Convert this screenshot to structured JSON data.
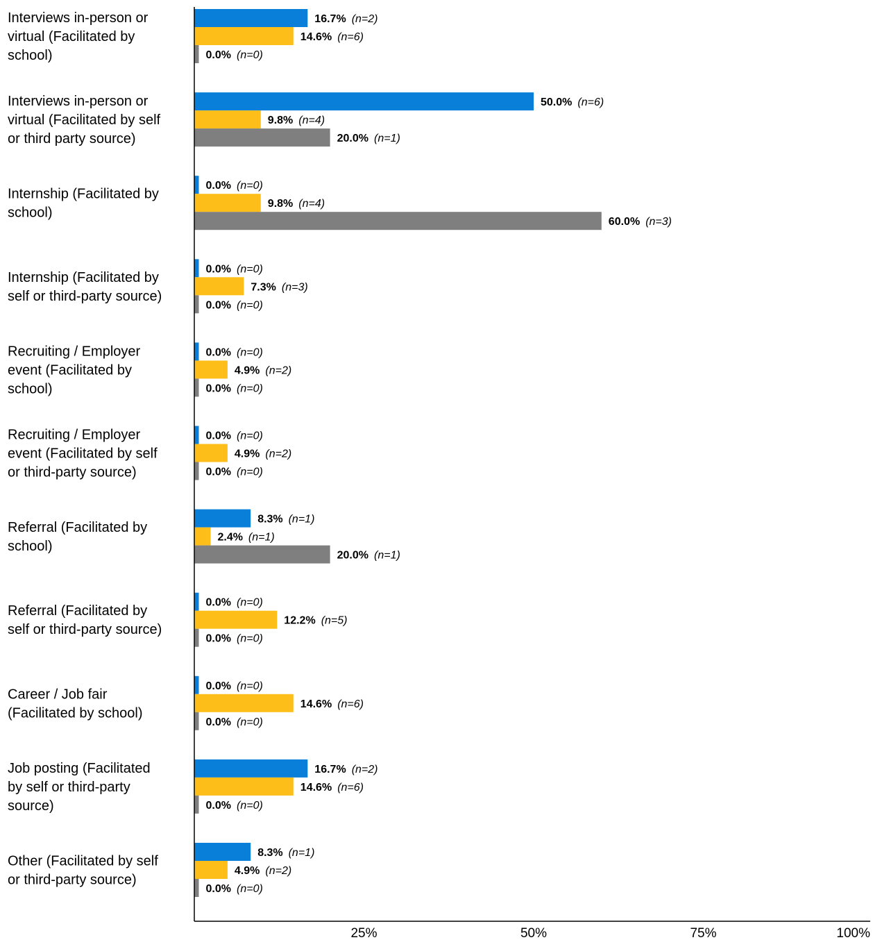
{
  "chart_data": {
    "type": "bar",
    "orientation": "horizontal",
    "grid": false,
    "xlim": [
      0,
      100
    ],
    "x_ticks": [
      "25%",
      "50%",
      "75%",
      "100%"
    ],
    "categories": [
      [
        "Interviews in-person or",
        "virtual (Facilitated by",
        "school)"
      ],
      [
        "Interviews in-person or",
        "virtual (Facilitated by self",
        "or third party source)"
      ],
      [
        "Internship (Facilitated by",
        "school)"
      ],
      [
        "Internship (Facilitated by",
        "self or third-party source)"
      ],
      [
        "Recruiting / Employer",
        "event (Facilitated by",
        "school)"
      ],
      [
        "Recruiting / Employer",
        "event (Facilitated by self",
        "or third-party source)"
      ],
      [
        "Referral (Facilitated by",
        "school)"
      ],
      [
        "Referral (Facilitated by",
        "self or third-party source)"
      ],
      [
        "Career / Job fair",
        "(Facilitated by school)"
      ],
      [
        "Job posting (Facilitated",
        "by self or third-party",
        "source)"
      ],
      [
        "Other (Facilitated by self",
        "or third-party source)"
      ]
    ],
    "series": [
      {
        "color": "#0A7FD9",
        "values": [
          16.7,
          50.0,
          0.0,
          0.0,
          0.0,
          0.0,
          8.3,
          0.0,
          0.0,
          16.7,
          8.3
        ],
        "value_labels": [
          "16.7%",
          "50.0%",
          "0.0%",
          "0.0%",
          "0.0%",
          "0.0%",
          "8.3%",
          "0.0%",
          "0.0%",
          "16.7%",
          "8.3%"
        ],
        "n_labels": [
          "(n=2)",
          "(n=6)",
          "(n=0)",
          "(n=0)",
          "(n=0)",
          "(n=0)",
          "(n=1)",
          "(n=0)",
          "(n=0)",
          "(n=2)",
          "(n=1)"
        ]
      },
      {
        "color": "#FDBE1A",
        "values": [
          14.6,
          9.8,
          9.8,
          7.3,
          4.9,
          4.9,
          2.4,
          12.2,
          14.6,
          14.6,
          4.9
        ],
        "value_labels": [
          "14.6%",
          "9.8%",
          "9.8%",
          "7.3%",
          "4.9%",
          "4.9%",
          "2.4%",
          "12.2%",
          "14.6%",
          "14.6%",
          "4.9%"
        ],
        "n_labels": [
          "(n=6)",
          "(n=4)",
          "(n=4)",
          "(n=3)",
          "(n=2)",
          "(n=2)",
          "(n=1)",
          "(n=5)",
          "(n=6)",
          "(n=6)",
          "(n=2)"
        ]
      },
      {
        "color": "#7F7F7F",
        "values": [
          0.0,
          20.0,
          60.0,
          0.0,
          0.0,
          0.0,
          20.0,
          0.0,
          0.0,
          0.0,
          0.0
        ],
        "value_labels": [
          "0.0%",
          "20.0%",
          "60.0%",
          "0.0%",
          "0.0%",
          "0.0%",
          "20.0%",
          "0.0%",
          "0.0%",
          "0.0%",
          "0.0%"
        ],
        "n_labels": [
          "(n=0)",
          "(n=1)",
          "(n=3)",
          "(n=0)",
          "(n=0)",
          "(n=0)",
          "(n=1)",
          "(n=0)",
          "(n=0)",
          "(n=0)",
          "(n=0)"
        ]
      }
    ]
  }
}
